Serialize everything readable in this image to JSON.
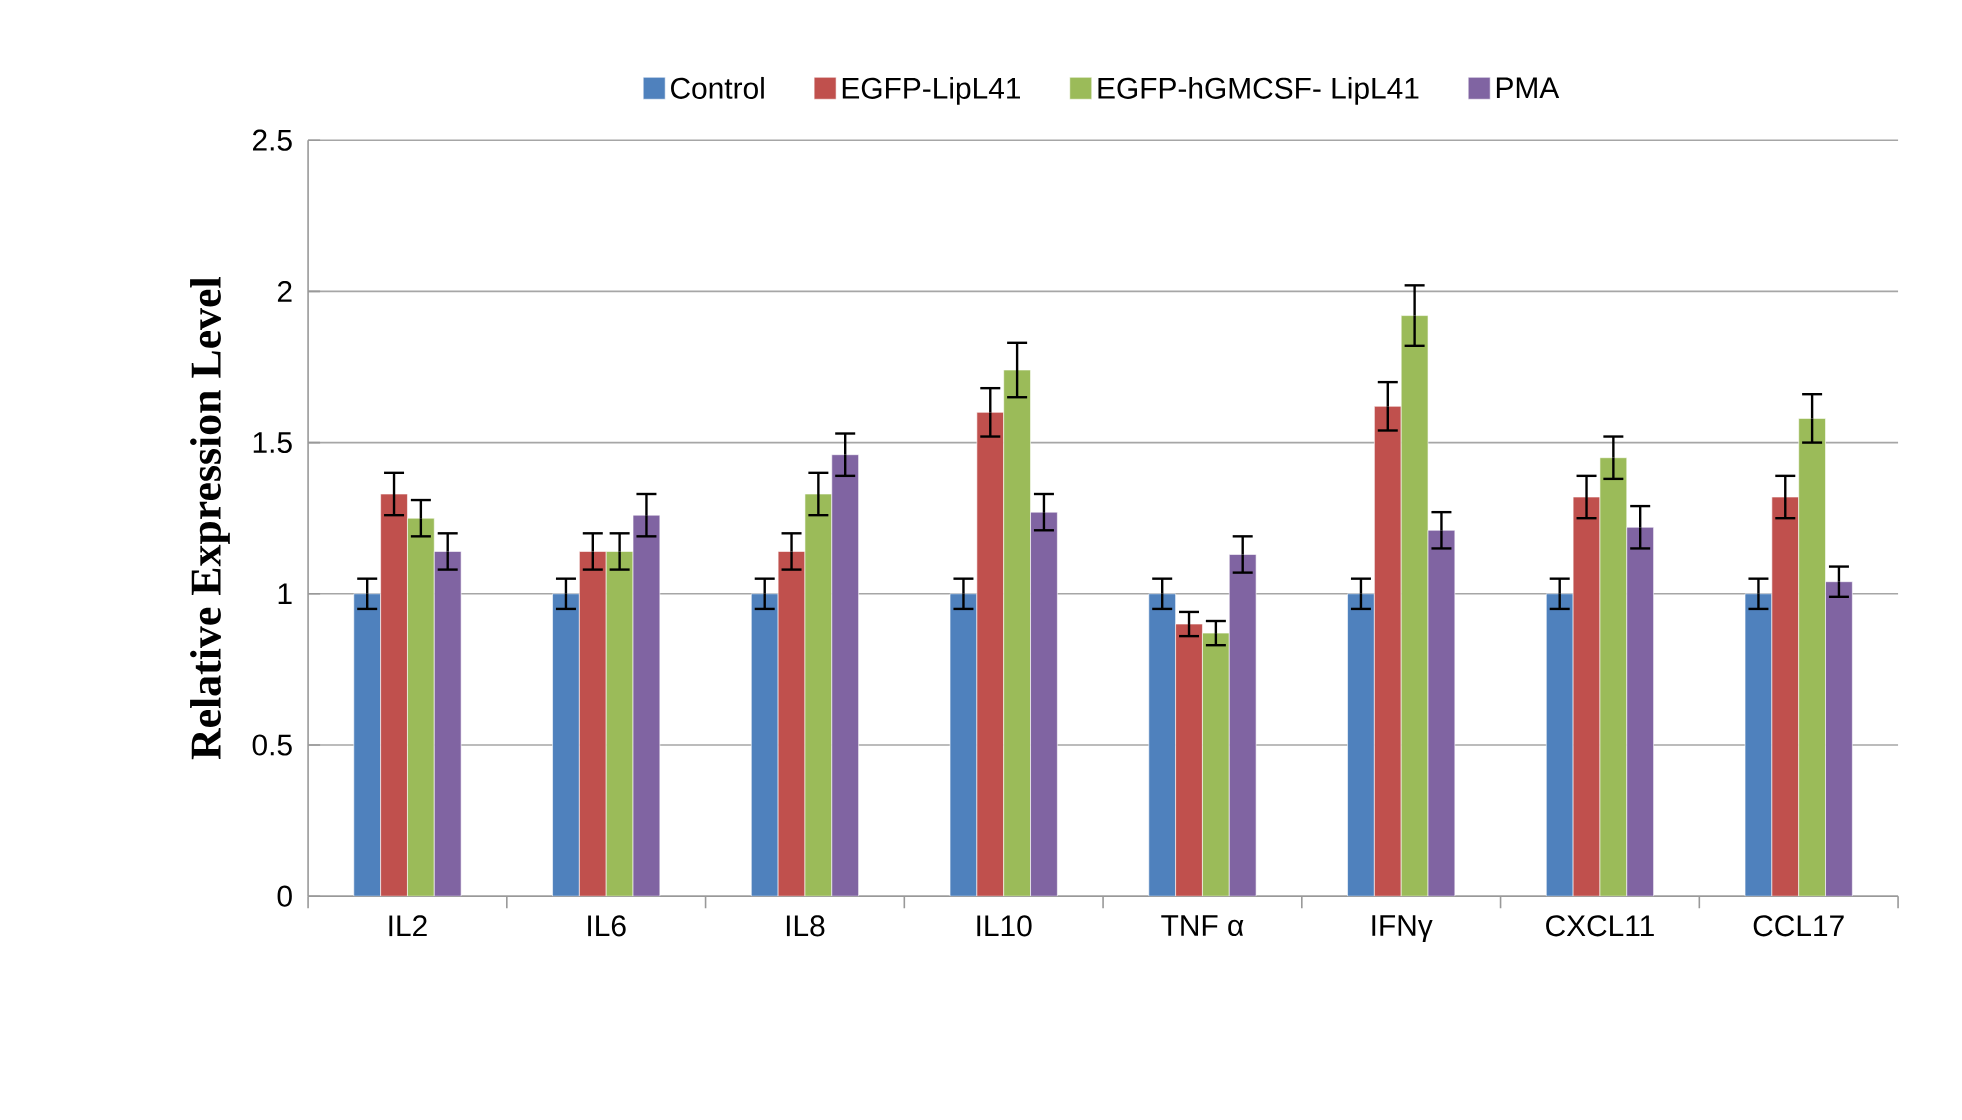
{
  "chart_data": {
    "type": "bar",
    "ylabel": "Relative Expression Level",
    "categories": [
      "IL2",
      "IL6",
      "IL8",
      "IL10",
      "TNF α",
      "IFNγ",
      "CXCL11",
      "CCL17"
    ],
    "series": [
      {
        "name": "Control",
        "color": "#4f81bd",
        "values": [
          1,
          1,
          1,
          1,
          1,
          1,
          1,
          1
        ],
        "errors": [
          0.05,
          0.05,
          0.05,
          0.05,
          0.05,
          0.05,
          0.05,
          0.05
        ]
      },
      {
        "name": "EGFP-LipL41",
        "color": "#c0504d",
        "values": [
          1.33,
          1.14,
          1.14,
          1.6,
          0.9,
          1.62,
          1.32,
          1.32
        ],
        "errors": [
          0.07,
          0.06,
          0.06,
          0.08,
          0.04,
          0.08,
          0.07,
          0.07
        ]
      },
      {
        "name": "EGFP-hGMCSF- LipL41",
        "color": "#9bbb59",
        "values": [
          1.25,
          1.14,
          1.33,
          1.74,
          0.87,
          1.92,
          1.45,
          1.58
        ],
        "errors": [
          0.06,
          0.06,
          0.07,
          0.09,
          0.04,
          0.1,
          0.07,
          0.08
        ]
      },
      {
        "name": "PMA",
        "color": "#8064a2",
        "values": [
          1.14,
          1.26,
          1.46,
          1.27,
          1.13,
          1.21,
          1.22,
          1.04
        ],
        "errors": [
          0.06,
          0.07,
          0.07,
          0.06,
          0.06,
          0.06,
          0.07,
          0.05
        ]
      }
    ],
    "ylim": [
      0,
      2.5
    ],
    "yticks": [
      0,
      0.5,
      1,
      1.5,
      2,
      2.5
    ],
    "grid": "y",
    "legend": "top"
  }
}
